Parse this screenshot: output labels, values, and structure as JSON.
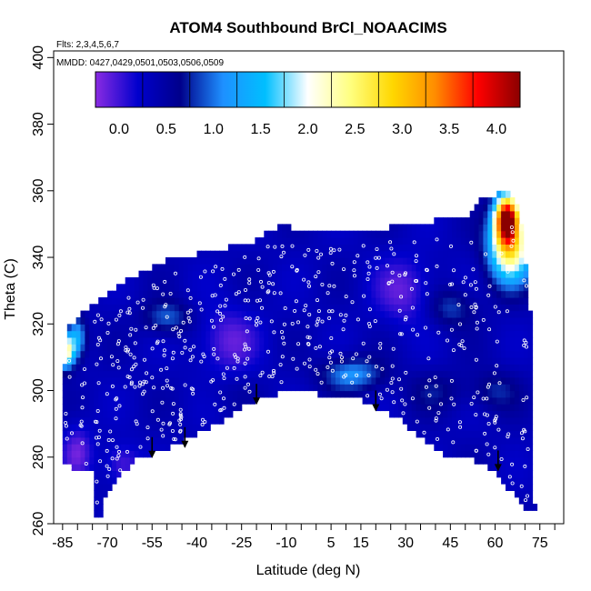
{
  "chart_data": {
    "type": "heatmap",
    "title": "ATOM4 Southbound BrCl_NOAACIMS",
    "flights_note": "Flts: 2,3,4,5,6,7",
    "dates_note": "MMDD: 0427,0429,0501,0503,0506,0509",
    "xlabel": "Latitude (deg N)",
    "ylabel": "Theta (C)",
    "xlim": [
      -88,
      83
    ],
    "ylim": [
      260,
      402
    ],
    "x_ticks": [
      -85,
      -70,
      -55,
      -40,
      -25,
      -10,
      5,
      15,
      30,
      45,
      60,
      75
    ],
    "x_minor_ticks": [
      -80,
      -75,
      -65,
      -60,
      -50,
      -45,
      -35,
      -30,
      -20,
      -15,
      -5,
      0,
      10,
      20,
      25,
      35,
      40,
      50,
      55,
      65,
      70,
      80
    ],
    "y_ticks": [
      260,
      280,
      300,
      320,
      340,
      360,
      380,
      400
    ],
    "colorbar": {
      "min": -0.25,
      "max": 4.25,
      "ticks": [
        0.0,
        0.5,
        1.0,
        1.5,
        2.0,
        2.5,
        3.0,
        3.5,
        4.0
      ],
      "tick_labels": [
        "0.0",
        "0.5",
        "1.0",
        "1.5",
        "2.0",
        "2.5",
        "3.0",
        "3.5",
        "4.0"
      ],
      "colors": [
        "#8a2be2",
        "#0000cd",
        "#00008b",
        "#1e90ff",
        "#00bfff",
        "#ffffff",
        "#ffff80",
        "#ffd700",
        "#ff8c00",
        "#ff0000",
        "#8b0000"
      ]
    },
    "surface_boundary": [
      [
        -75,
        263
      ],
      [
        -72,
        263
      ],
      [
        -70,
        270
      ],
      [
        -65,
        275
      ],
      [
        -60,
        280
      ],
      [
        -55,
        281
      ],
      [
        -50,
        282
      ],
      [
        -45,
        285
      ],
      [
        -40,
        287
      ],
      [
        -35,
        289
      ],
      [
        -30,
        292
      ],
      [
        -25,
        295
      ],
      [
        -20,
        297
      ],
      [
        -15,
        298
      ],
      [
        -10,
        301
      ],
      [
        -5,
        300
      ],
      [
        0,
        299
      ],
      [
        5,
        299
      ],
      [
        10,
        298
      ],
      [
        15,
        297
      ],
      [
        20,
        295
      ],
      [
        25,
        293
      ],
      [
        30,
        290
      ],
      [
        35,
        286
      ],
      [
        40,
        283
      ],
      [
        45,
        279
      ],
      [
        50,
        280
      ],
      [
        55,
        278
      ],
      [
        60,
        276
      ],
      [
        65,
        270
      ],
      [
        70,
        265
      ],
      [
        73,
        265
      ]
    ],
    "top_boundary": [
      [
        -85,
        278
      ],
      [
        -84,
        318
      ],
      [
        -80,
        322
      ],
      [
        -75,
        326
      ],
      [
        -70,
        329
      ],
      [
        -65,
        332
      ],
      [
        -60,
        335
      ],
      [
        -55,
        337
      ],
      [
        -50,
        339
      ],
      [
        -40,
        341
      ],
      [
        -30,
        343
      ],
      [
        -20,
        345
      ],
      [
        -12,
        350
      ],
      [
        -5,
        348
      ],
      [
        0,
        347
      ],
      [
        5,
        347
      ],
      [
        10,
        348
      ],
      [
        15,
        348
      ],
      [
        20,
        348
      ],
      [
        25,
        349
      ],
      [
        30,
        349
      ],
      [
        35,
        350
      ],
      [
        40,
        351
      ],
      [
        50,
        352
      ],
      [
        55,
        358
      ],
      [
        60,
        359
      ],
      [
        65,
        359
      ],
      [
        68,
        355
      ],
      [
        70,
        340
      ],
      [
        72,
        322
      ],
      [
        73,
        265
      ]
    ],
    "hotspots": [
      {
        "lat": 64,
        "theta": 352,
        "value": 3.9,
        "sx": 4,
        "sy": 7
      },
      {
        "lat": 65,
        "theta": 343,
        "value": 2.6,
        "sx": 7,
        "sy": 10
      },
      {
        "lat": -84,
        "theta": 312,
        "value": 2.4,
        "sx": 3,
        "sy": 5
      },
      {
        "lat": -80,
        "theta": 316,
        "value": 1.3,
        "sx": 3,
        "sy": 6
      },
      {
        "lat": 12,
        "theta": 305,
        "value": 1.1,
        "sx": 10,
        "sy": 5
      },
      {
        "lat": -50,
        "theta": 322,
        "value": 0.9,
        "sx": 8,
        "sy": 5
      },
      {
        "lat": 45,
        "theta": 325,
        "value": 0.8,
        "sx": 8,
        "sy": 6
      },
      {
        "lat": 60,
        "theta": 300,
        "value": 0.7,
        "sx": 8,
        "sy": 6
      },
      {
        "lat": 40,
        "theta": 300,
        "value": 0.6,
        "sx": 10,
        "sy": 6
      },
      {
        "lat": -30,
        "theta": 300,
        "value": 0.4,
        "sx": 10,
        "sy": 6
      }
    ],
    "low_zones": [
      {
        "lat": -80,
        "theta": 282,
        "sx": 5,
        "sy": 8
      },
      {
        "lat": -65,
        "theta": 278,
        "sx": 6,
        "sy": 6
      },
      {
        "lat": -30,
        "theta": 315,
        "sx": 10,
        "sy": 10
      },
      {
        "lat": 30,
        "theta": 330,
        "sx": 10,
        "sy": 10
      }
    ],
    "profile_arrows": [
      {
        "lat": -55,
        "theta": 280
      },
      {
        "lat": -44,
        "theta": 283
      },
      {
        "lat": -20,
        "theta": 296
      },
      {
        "lat": 20,
        "theta": 294
      },
      {
        "lat": 61,
        "theta": 276
      }
    ]
  }
}
